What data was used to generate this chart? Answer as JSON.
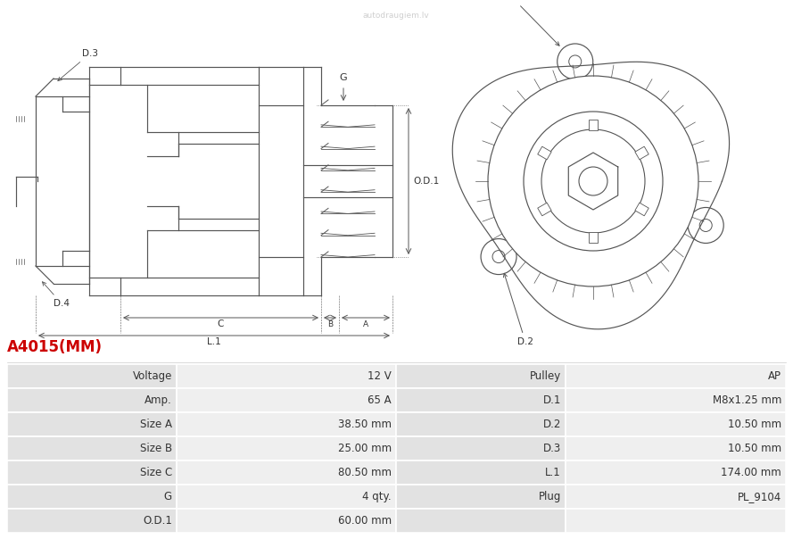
{
  "title": "A4015(MM)",
  "title_color": "#cc0000",
  "title_fontsize": 12,
  "table_row_bg1": "#e2e2e2",
  "table_row_bg2": "#efefef",
  "table_border_color": "#ffffff",
  "rows": [
    [
      "Voltage",
      "12 V",
      "Pulley",
      "AP"
    ],
    [
      "Amp.",
      "65 A",
      "D.1",
      "M8x1.25 mm"
    ],
    [
      "Size A",
      "38.50 mm",
      "D.2",
      "10.50 mm"
    ],
    [
      "Size B",
      "25.00 mm",
      "D.3",
      "10.50 mm"
    ],
    [
      "Size C",
      "80.50 mm",
      "L.1",
      "174.00 mm"
    ],
    [
      "G",
      "4 qty.",
      "Plug",
      "PL_9104"
    ],
    [
      "O.D.1",
      "60.00 mm",
      "",
      ""
    ]
  ],
  "font_size": 8.5,
  "bg_color": "#ffffff",
  "line_color": "#555555",
  "lw": 0.85
}
